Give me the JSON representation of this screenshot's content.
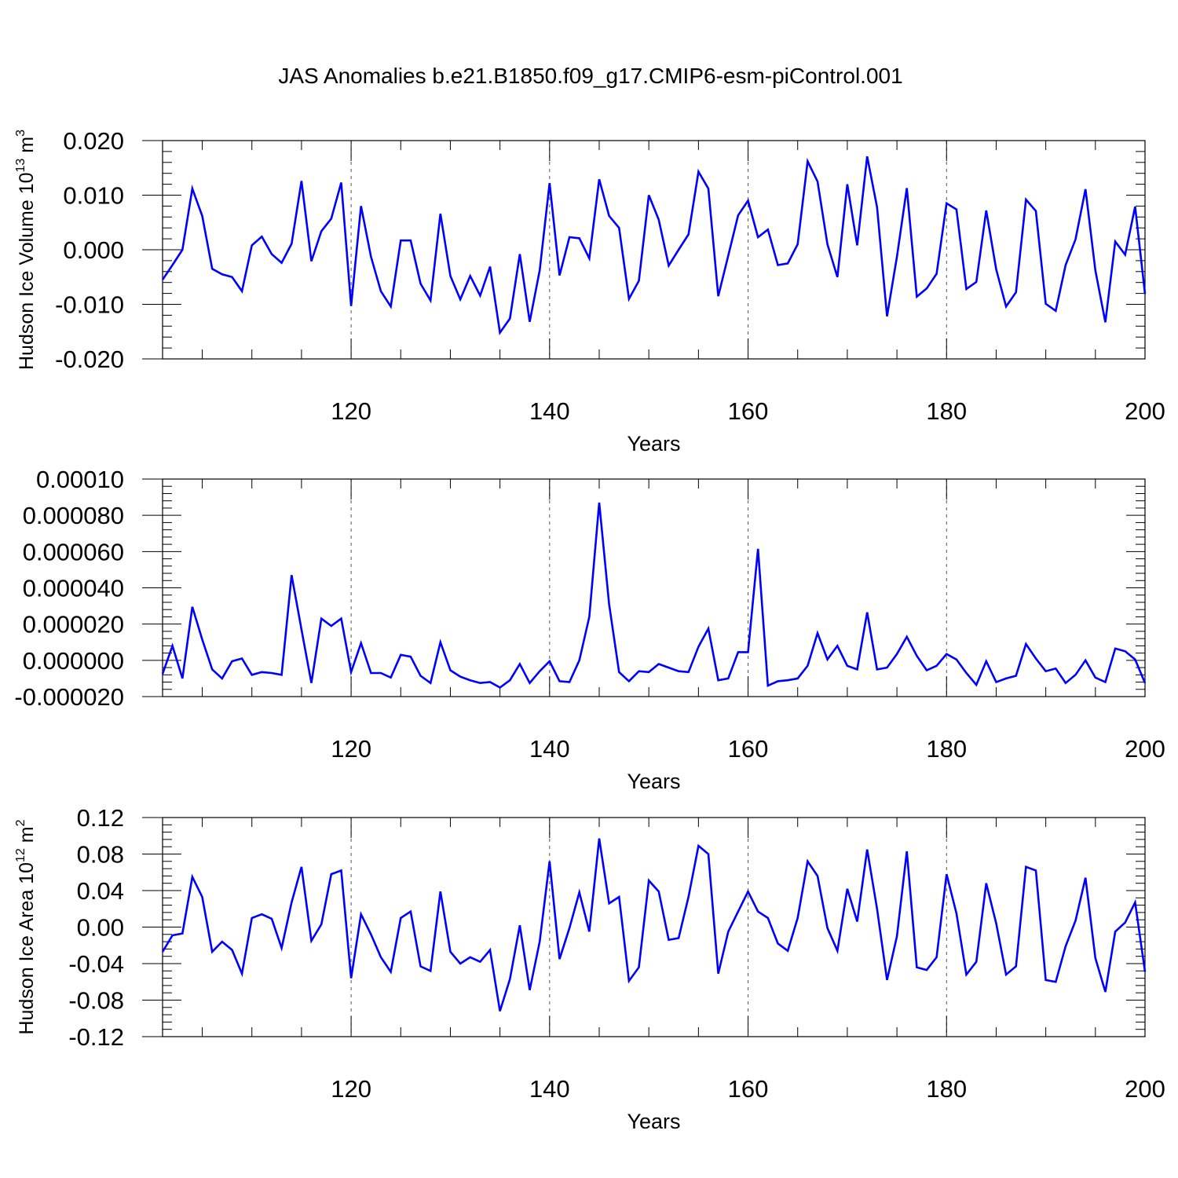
{
  "title": "JAS Anomalies b.e21.B1850.f09_g17.CMIP6-esm-piControl.001",
  "line_color": "#0000ff",
  "chart_data": [
    {
      "type": "line",
      "ylabel_main": "Hudson Ice Volume 10",
      "ylabel_sup": "13",
      "ylabel_unit": " m",
      "ylabel_unit_sup": "3",
      "xlabel": "Years",
      "xlim": [
        101,
        200
      ],
      "ylim": [
        -0.02,
        0.02
      ],
      "x_ticks": [
        120,
        140,
        160,
        180,
        200
      ],
      "x_tick_labels": [
        "120",
        "140",
        "160",
        "180",
        "200"
      ],
      "y_ticks": [
        -0.02,
        -0.01,
        0.0,
        0.01,
        0.02
      ],
      "y_tick_labels": [
        "-0.020",
        "-0.010",
        "0.000",
        "0.010",
        "0.020"
      ],
      "grid": "vertical dashed at major x ticks",
      "x_start": 101,
      "values": [
        -0.0055,
        -0.0028,
        0.0,
        0.0112,
        0.0062,
        -0.0035,
        -0.0045,
        -0.005,
        -0.0076,
        0.0008,
        0.0024,
        -0.0008,
        -0.0024,
        0.0011,
        0.0126,
        -0.0021,
        0.0034,
        0.0057,
        0.0123,
        -0.0103,
        0.008,
        -0.0013,
        -0.0076,
        -0.0104,
        0.0017,
        0.0017,
        -0.0062,
        -0.0093,
        0.0066,
        -0.0048,
        -0.0091,
        -0.0048,
        -0.0084,
        -0.0031,
        -0.0152,
        -0.0126,
        -0.0008,
        -0.0132,
        -0.0038,
        0.0122,
        -0.0047,
        0.0023,
        0.0021,
        -0.0016,
        0.0129,
        0.0062,
        0.004,
        -0.009,
        -0.0057,
        0.01,
        0.0055,
        -0.0029,
        0.0,
        0.0028,
        0.0143,
        0.0112,
        -0.0085,
        -0.0011,
        0.0063,
        0.009,
        0.0023,
        0.0037,
        -0.0028,
        -0.0025,
        0.001,
        0.0162,
        0.0125,
        0.001,
        -0.005,
        0.012,
        0.0008,
        0.0171,
        0.0078,
        -0.0122,
        -0.0013,
        0.0113,
        -0.0086,
        -0.0071,
        -0.0044,
        0.0085,
        0.0074,
        -0.0072,
        -0.0059,
        0.0072,
        -0.0036,
        -0.0104,
        -0.0078,
        0.0092,
        0.0071,
        -0.0099,
        -0.0112,
        -0.0028,
        0.0019,
        0.0111,
        -0.0038,
        -0.0133,
        0.0015,
        -0.0009,
        0.0079,
        -0.0081
      ]
    },
    {
      "type": "line",
      "ylabel_main": "",
      "xlabel": "Years",
      "xlim": [
        101,
        200
      ],
      "ylim": [
        -2e-05,
        0.0001
      ],
      "x_ticks": [
        120,
        140,
        160,
        180,
        200
      ],
      "x_tick_labels": [
        "120",
        "140",
        "160",
        "180",
        "200"
      ],
      "y_ticks": [
        -2e-05,
        0.0,
        2e-05,
        4e-05,
        6e-05,
        8e-05,
        0.0001
      ],
      "y_tick_labels": [
        "-0.000020",
        "0.000000",
        "0.000020",
        "0.000040",
        "0.000060",
        "0.000080",
        "0.00010"
      ],
      "grid": "vertical dashed at major x ticks",
      "x_start": 101,
      "values": [
        -7.5e-06,
        8e-06,
        -1e-05,
        2.95e-05,
        1.15e-05,
        -5e-06,
        -1e-05,
        -5e-07,
        1e-06,
        -8e-06,
        -6.5e-06,
        -7e-06,
        -8e-06,
        4.7e-05,
        1.7e-05,
        -1.25e-05,
        2.3e-05,
        1.9e-05,
        2.3e-05,
        -6.5e-06,
        9.5e-06,
        -7e-06,
        -7e-06,
        -9.5e-06,
        3e-06,
        2e-06,
        -8.5e-06,
        -1.25e-05,
        1e-05,
        -5.5e-06,
        -9e-06,
        -1.1e-05,
        -1.25e-05,
        -1.2e-05,
        -1.5e-05,
        -1.1e-05,
        -2e-06,
        -1.25e-05,
        -6e-06,
        -5e-07,
        -1.15e-05,
        -1.2e-05,
        0.0,
        2.4e-05,
        8.7e-05,
        3.1e-05,
        -6.5e-06,
        -1.15e-05,
        -6e-06,
        -6.5e-06,
        -2e-06,
        -4e-06,
        -6e-06,
        -6.5e-06,
        7.5e-06,
        1.75e-05,
        -1.1e-05,
        -1e-05,
        4.5e-06,
        4.5e-06,
        6.15e-05,
        -1.4e-05,
        -1.15e-05,
        -1.1e-05,
        -1e-05,
        -3e-06,
        1.5e-05,
        5e-07,
        8e-06,
        -3e-06,
        -5e-06,
        2.65e-05,
        -5e-06,
        -4e-06,
        3.5e-06,
        1.3e-05,
        2.5e-06,
        -5.5e-06,
        -3e-06,
        3.5e-06,
        5e-07,
        -7e-06,
        -1.35e-05,
        -5e-07,
        -1.2e-05,
        -1e-05,
        -8.5e-06,
        9e-06,
        1e-06,
        -6e-06,
        -4.5e-06,
        -1.25e-05,
        -8e-06,
        0.0,
        -9.5e-06,
        -1.2e-05,
        6.5e-06,
        5e-06,
        5e-07,
        -1.25e-05
      ]
    },
    {
      "type": "line",
      "ylabel_main": "Hudson Ice Area 10",
      "ylabel_sup": "12",
      "ylabel_unit": " m",
      "ylabel_unit_sup": "2",
      "xlabel": "Years",
      "xlim": [
        101,
        200
      ],
      "ylim": [
        -0.12,
        0.12
      ],
      "x_ticks": [
        120,
        140,
        160,
        180,
        200
      ],
      "x_tick_labels": [
        "120",
        "140",
        "160",
        "180",
        "200"
      ],
      "y_ticks": [
        -0.12,
        -0.08,
        -0.04,
        0.0,
        0.04,
        0.08,
        0.12
      ],
      "y_tick_labels": [
        "-0.12",
        "-0.08",
        "-0.04",
        "0.00",
        "0.04",
        "0.08",
        "0.12"
      ],
      "grid": "vertical dashed at major x ticks",
      "x_start": 101,
      "values": [
        -0.027,
        -0.009,
        -0.007,
        0.055,
        0.033,
        -0.027,
        -0.016,
        -0.025,
        -0.051,
        0.01,
        0.014,
        0.009,
        -0.023,
        0.027,
        0.066,
        -0.015,
        0.003,
        0.058,
        0.062,
        -0.056,
        0.014,
        -0.008,
        -0.033,
        -0.049,
        0.01,
        0.017,
        -0.043,
        -0.048,
        0.039,
        -0.027,
        -0.04,
        -0.033,
        -0.038,
        -0.025,
        -0.092,
        -0.057,
        0.002,
        -0.069,
        -0.016,
        0.072,
        -0.035,
        -0.001,
        0.038,
        -0.005,
        0.097,
        0.026,
        0.033,
        -0.059,
        -0.044,
        0.051,
        0.039,
        -0.014,
        -0.012,
        0.033,
        0.089,
        0.08,
        -0.051,
        -0.005,
        0.017,
        0.039,
        0.017,
        0.01,
        -0.018,
        -0.026,
        0.01,
        0.072,
        0.056,
        -0.001,
        -0.026,
        0.042,
        0.006,
        0.085,
        0.02,
        -0.058,
        -0.01,
        0.083,
        -0.044,
        -0.047,
        -0.033,
        0.058,
        0.015,
        -0.052,
        -0.038,
        0.048,
        0.004,
        -0.052,
        -0.043,
        0.066,
        0.062,
        -0.058,
        -0.06,
        -0.021,
        0.007,
        0.054,
        -0.034,
        -0.071,
        -0.005,
        0.005,
        0.027,
        -0.049
      ]
    }
  ]
}
